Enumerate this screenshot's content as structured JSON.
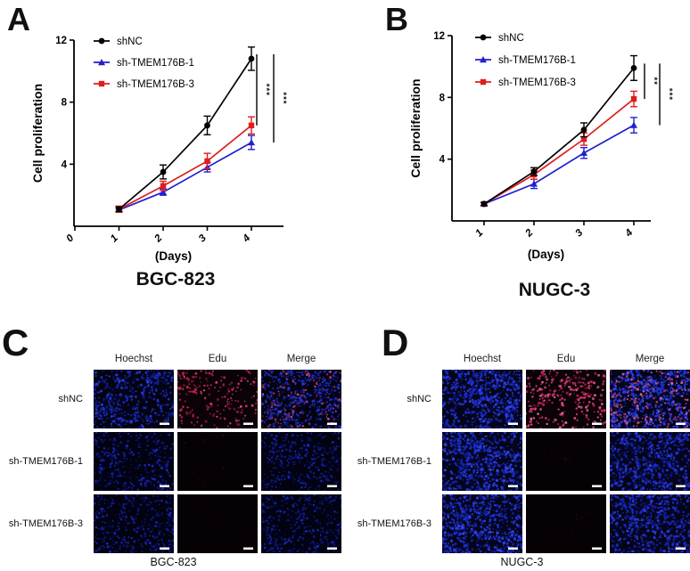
{
  "colors": {
    "shnc_black": "#000000",
    "sh1_blue": "#2121cc",
    "sh3_red": "#e01d1d",
    "hoechst_blue": "#2233dd",
    "edu_red": "#cc2a55",
    "scalebar_white": "#ffffff",
    "background": "#ffffff"
  },
  "chart_data": [
    {
      "type": "line",
      "panel": "A",
      "title": "BGC-823",
      "xlabel": "(Days)",
      "ylabel": "Cell proliferation",
      "x": [
        1,
        2,
        3,
        4
      ],
      "x_ticks": [
        0,
        1,
        2,
        3,
        4
      ],
      "y_ticks": [
        4,
        8,
        12
      ],
      "ylim": [
        0,
        12
      ],
      "legend_position": "top-left-inside",
      "series": [
        {
          "name": "shNC",
          "color": "#000000",
          "marker": "circle",
          "values": [
            1.1,
            3.5,
            6.5,
            10.8
          ],
          "errors": [
            0.15,
            0.45,
            0.6,
            0.75
          ]
        },
        {
          "name": "sh-TMEM176B-1",
          "color": "#2121cc",
          "marker": "triangle",
          "values": [
            1.05,
            2.2,
            3.8,
            5.4
          ],
          "errors": [
            0.1,
            0.2,
            0.3,
            0.45
          ]
        },
        {
          "name": "sh-TMEM176B-3",
          "color": "#e01d1d",
          "marker": "square",
          "values": [
            1.1,
            2.6,
            4.2,
            6.5
          ],
          "errors": [
            0.2,
            0.3,
            0.5,
            0.55
          ]
        }
      ],
      "significance": [
        {
          "label": "***",
          "series_a": 0,
          "series_b": 2
        },
        {
          "label": "***",
          "series_a": 0,
          "series_b": 1
        }
      ]
    },
    {
      "type": "line",
      "panel": "B",
      "title": "NUGC-3",
      "xlabel": "(Days)",
      "ylabel": "Cell proliferation",
      "x": [
        1,
        2,
        3,
        4
      ],
      "x_ticks": [
        1,
        2,
        3,
        4
      ],
      "y_ticks": [
        4,
        8,
        12
      ],
      "ylim": [
        0,
        12
      ],
      "legend_position": "top-left-inside",
      "series": [
        {
          "name": "shNC",
          "color": "#000000",
          "marker": "circle",
          "values": [
            1.1,
            3.2,
            5.9,
            9.9
          ],
          "errors": [
            0.1,
            0.25,
            0.45,
            0.8
          ]
        },
        {
          "name": "sh-TMEM176B-1",
          "color": "#2121cc",
          "marker": "triangle",
          "values": [
            1.1,
            2.4,
            4.4,
            6.2
          ],
          "errors": [
            0.1,
            0.3,
            0.35,
            0.5
          ]
        },
        {
          "name": "sh-TMEM176B-3",
          "color": "#e01d1d",
          "marker": "square",
          "values": [
            1.1,
            3.0,
            5.3,
            7.9
          ],
          "errors": [
            0.1,
            0.3,
            0.4,
            0.5
          ]
        }
      ],
      "significance": [
        {
          "label": "**",
          "series_a": 0,
          "series_b": 2
        },
        {
          "label": "***",
          "series_a": 0,
          "series_b": 1
        }
      ]
    }
  ],
  "panels": {
    "A": {
      "label": "A"
    },
    "B": {
      "label": "B"
    },
    "C": {
      "label": "C",
      "caption": "BGC-823",
      "columns": [
        "Hoechst",
        "Edu",
        "Merge"
      ],
      "rows": [
        {
          "label": "shNC",
          "cells": [
            "hoechst-medium",
            "edu-positive",
            "merge-positive"
          ]
        },
        {
          "label": "sh-TMEM176B-1",
          "cells": [
            "hoechst-dim",
            "edu-negative",
            "merge-negative"
          ]
        },
        {
          "label": "sh-TMEM176B-3",
          "cells": [
            "hoechst-dim",
            "edu-negative",
            "merge-negative"
          ]
        }
      ]
    },
    "D": {
      "label": "D",
      "caption": "NUGC-3",
      "columns": [
        "Hoechst",
        "Edu",
        "Merge"
      ],
      "rows": [
        {
          "label": "shNC",
          "cells": [
            "hoechst-bright",
            "edu-positive-bright",
            "merge-positive-bright"
          ]
        },
        {
          "label": "sh-TMEM176B-1",
          "cells": [
            "hoechst-bright",
            "edu-negative",
            "merge-negative-bright"
          ]
        },
        {
          "label": "sh-TMEM176B-3",
          "cells": [
            "hoechst-bright",
            "edu-negative",
            "merge-negative-bright"
          ]
        }
      ]
    }
  }
}
